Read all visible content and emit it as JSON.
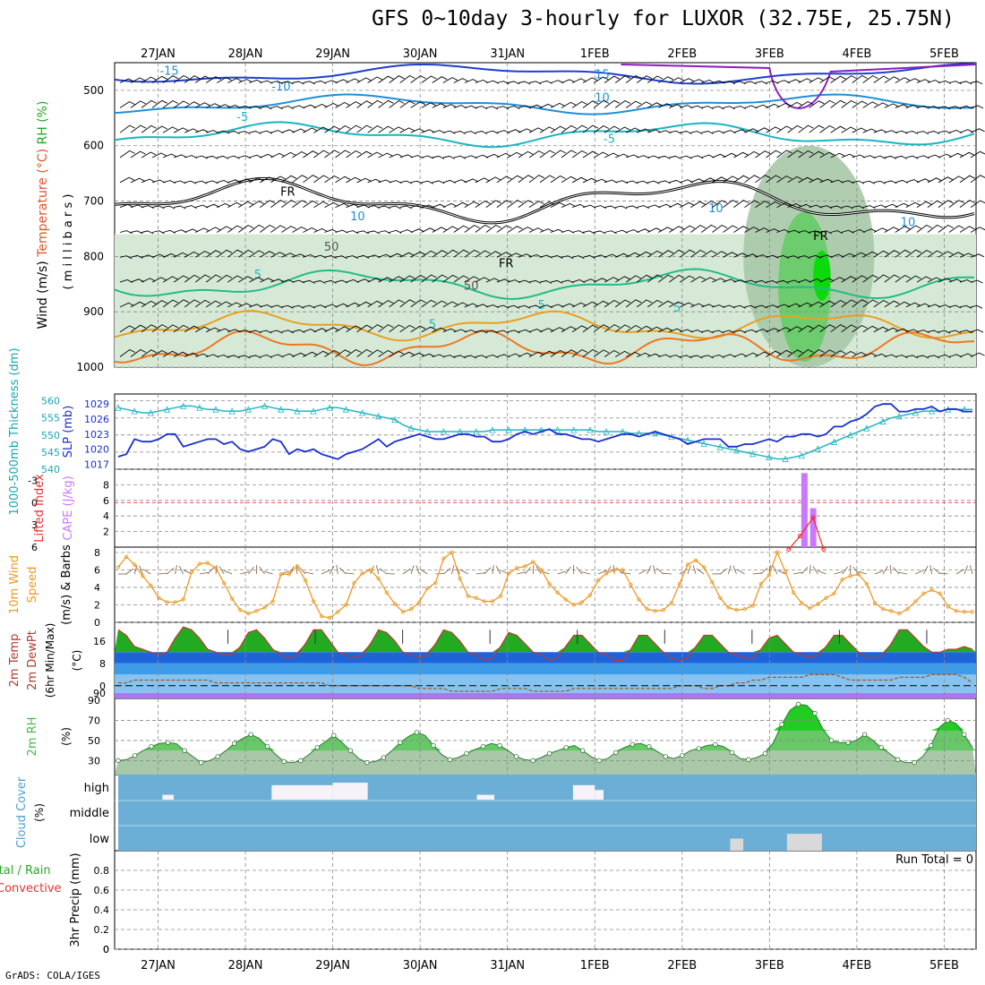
{
  "title": "GFS 0~10day 3-hourly for LUXOR (32.75E, 25.75N)",
  "credit": "GrADS: COLA/IGES",
  "colors": {
    "wind_barb": "#000000",
    "rh_light": "#d6e9d6",
    "rh_mid": "#a9c8a9",
    "rh_green": "#66cc66",
    "rh_bright": "#00dd00",
    "slp": "#1a2fcf",
    "thickness": "#22b6c2",
    "cape": "#cc77ff",
    "lifted": "#ff2222",
    "wind10m": "#ee9922",
    "temp_high": "#22aa22",
    "temp_blue1": "#1f63d9",
    "temp_blue2": "#3d9be8",
    "temp_blue3": "#86c3f0",
    "freezing": "#aa77ee",
    "dewpoint": "#a05a2c",
    "rh2m": "#44bb44",
    "cloud": "#6baed6"
  },
  "chart_data": [
    {
      "panel": "upper-air",
      "type": "heatmap",
      "ylabel_parts": [
        "RH (%)",
        "Temperature (°C)",
        "Wind (m/s)"
      ],
      "yunit": "( m i l l i b a r s )",
      "x_dates": [
        "27JAN",
        "28JAN",
        "29JAN",
        "30JAN",
        "31JAN",
        "1FEB",
        "2FEB",
        "3FEB",
        "4FEB",
        "5FEB"
      ],
      "yticks": [
        500,
        600,
        700,
        800,
        900,
        1000
      ],
      "ylim": [
        1000,
        450
      ],
      "contour_labels": [
        "-15",
        "-10",
        "-5",
        "15",
        "10",
        "-5",
        "5",
        "-5",
        "10",
        "5",
        "FR",
        "FR",
        "FR",
        "10",
        "10",
        "50",
        "50",
        "5"
      ],
      "rh_shading": [
        {
          "x": [
            0.0,
            0.5
          ],
          "p": [
            780,
            1000
          ],
          "level": 1
        },
        {
          "x": [
            0.6,
            1.4
          ],
          "p": [
            800,
            1000
          ],
          "level": 1
        },
        {
          "x": [
            2.5,
            3.6
          ],
          "p": [
            780,
            1000
          ],
          "level": 1
        },
        {
          "x": [
            4.1,
            5.2
          ],
          "p": [
            790,
            1000
          ],
          "level": 1
        },
        {
          "x": [
            6.7,
            8.2
          ],
          "p": [
            600,
            1000
          ],
          "level": 2
        },
        {
          "x": [
            7.1,
            7.7
          ],
          "p": [
            720,
            990
          ],
          "level": 3
        },
        {
          "x": [
            7.5,
            7.7
          ],
          "p": [
            790,
            880
          ],
          "level": 4
        }
      ]
    },
    {
      "panel": "slp-thickness",
      "type": "line",
      "ylabel_left": "1000-500mb Thickness (dm)",
      "ylabel_right": "SLP (mb)",
      "yticks_thickness": [
        540,
        545,
        550,
        555,
        560
      ],
      "yticks_slp": [
        1017,
        1020,
        1023,
        1026,
        1029
      ],
      "slp_values": [
        1018.5,
        1019,
        1022,
        1021.5,
        1021.5,
        1022,
        1023,
        1023,
        1020.5,
        1021,
        1021.5,
        1022,
        1022,
        1021,
        1021.5,
        1020,
        1019.5,
        1020,
        1020.5,
        1022,
        1021.5,
        1019,
        1020,
        1019.5,
        1020,
        1019,
        1018.5,
        1018,
        1019,
        1019.5,
        1020,
        1021,
        1022,
        1020.5,
        1021.5,
        1022,
        1022.5,
        1023,
        1022.5,
        1022,
        1022,
        1022.5,
        1023,
        1023,
        1022.5,
        1022.5,
        1021.5,
        1021.5,
        1022,
        1023,
        1023.5,
        1023,
        1023.5,
        1024,
        1023,
        1023,
        1022.5,
        1022,
        1022,
        1021.5,
        1022,
        1022.5,
        1023,
        1023,
        1022.5,
        1023,
        1023.5,
        1023,
        1022.5,
        1022,
        1021,
        1021.5,
        1022,
        1022,
        1022,
        1020.5,
        1020.5,
        1021,
        1021,
        1021.5,
        1022,
        1021.5,
        1022.5,
        1022.5,
        1023,
        1023,
        1022.5,
        1023,
        1024.5,
        1024.5,
        1025.5,
        1026,
        1027,
        1028.5,
        1029,
        1029,
        1027.5,
        1027.5,
        1028,
        1028,
        1028.5,
        1027.5,
        1028,
        1028,
        1027.5,
        1027.5
      ],
      "thickness_values": [
        558,
        557.5,
        557,
        556.5,
        556.5,
        557,
        557.5,
        558,
        558.5,
        558.5,
        558,
        557.5,
        557.5,
        557,
        557,
        557,
        557.5,
        558,
        558.5,
        558,
        557.5,
        557.5,
        557,
        557,
        557,
        557.5,
        558,
        558,
        557.5,
        557,
        556.5,
        556,
        555.5,
        555,
        554.5,
        553,
        552,
        551.5,
        551,
        551,
        551,
        551,
        551,
        551,
        551,
        551,
        551.5,
        551.5,
        551.5,
        551.5,
        551.5,
        551.5,
        551.5,
        551.5,
        551.5,
        551.5,
        551.5,
        551.5,
        551.5,
        551,
        551,
        551,
        551,
        550.5,
        550.5,
        550.5,
        550.5,
        550,
        549.5,
        549,
        548.5,
        548,
        547.5,
        547,
        546.5,
        546,
        545.5,
        545,
        544.5,
        544,
        543.5,
        543,
        543,
        543.5,
        544,
        545,
        546,
        547,
        548,
        549,
        550,
        551,
        552,
        553,
        554,
        555,
        555.5,
        556,
        556.5,
        557,
        557,
        557,
        557.5,
        557.5,
        557.5,
        557.5
      ]
    },
    {
      "panel": "cape-lifted",
      "type": "bar",
      "ylabel_left": "Lifted Index",
      "ylabel_right": "CAPE (J/kg)",
      "yticks_li": [
        -3,
        0,
        3,
        6
      ],
      "yticks_cape": [
        2,
        4,
        6,
        8
      ],
      "cape_bars": [
        {
          "day": 7.4,
          "value": 9.5
        },
        {
          "day": 7.5,
          "value": 5.0
        }
      ],
      "lifted_points": [
        {
          "day": 7.22,
          "value": 6.3
        },
        {
          "day": 7.35,
          "value": 4.5
        },
        {
          "day": 7.5,
          "value": 2.0
        },
        {
          "day": 7.62,
          "value": 6.3
        }
      ]
    },
    {
      "panel": "wind10m",
      "type": "line",
      "ylabel": "10m Wind Speed (m/s) & Barbs",
      "yticks": [
        0,
        2,
        4,
        6,
        8
      ],
      "values": [
        6.3,
        7.5,
        6.6,
        5.3,
        4.2,
        2.8,
        2.3,
        2.3,
        2.6,
        5.7,
        6.7,
        6.8,
        6.2,
        4.5,
        2.7,
        1.4,
        1.0,
        1.3,
        1.7,
        2.4,
        5.5,
        5.5,
        6.4,
        4.8,
        2.4,
        0.7,
        0.5,
        1.2,
        2.0,
        4.5,
        5.6,
        6.0,
        5.0,
        3.4,
        2.1,
        1.2,
        1.5,
        2.3,
        3.9,
        4.5,
        7.3,
        8.0,
        5.0,
        3.0,
        2.8,
        2.4,
        2.4,
        3.0,
        5.6,
        6.2,
        6.4,
        6.9,
        6.0,
        4.4,
        3.4,
        2.6,
        2.0,
        2.3,
        3.1,
        4.8,
        5.6,
        6.0,
        6.0,
        4.3,
        2.6,
        1.5,
        1.3,
        1.4,
        2.2,
        4.4,
        6.6,
        7.1,
        6.3,
        4.6,
        2.8,
        1.7,
        1.4,
        1.5,
        1.9,
        4.4,
        5.4,
        8.0,
        5.8,
        3.4,
        2.2,
        1.6,
        2.1,
        2.8,
        3.3,
        4.9,
        5.3,
        5.5,
        4.4,
        2.2,
        1.5,
        1.3,
        1.0,
        1.5,
        2.4,
        3.3,
        3.7,
        3.3,
        1.8,
        1.3,
        1.2,
        1.2
      ]
    },
    {
      "panel": "temp2m",
      "type": "area",
      "ylabel": "2m Temp 2m DewPt (6hr Min/Max) (°C)",
      "yticks": [
        0,
        8,
        16
      ],
      "temp_values": [
        20,
        18,
        14,
        13,
        12,
        11,
        12,
        17,
        21,
        20,
        17,
        13,
        12,
        11,
        11,
        14,
        19,
        20,
        17,
        13,
        11,
        10,
        11,
        15,
        20,
        20,
        16,
        12,
        11,
        10,
        11,
        15,
        20,
        19,
        16,
        12,
        11,
        10,
        11,
        15,
        20,
        19,
        16,
        12,
        11,
        9,
        10,
        14,
        19,
        18,
        15,
        12,
        11,
        9,
        10,
        14,
        18,
        18,
        15,
        12,
        11,
        9,
        9,
        13,
        18,
        18,
        15,
        12,
        10,
        9,
        10,
        14,
        18,
        18,
        15,
        12,
        11,
        10,
        10,
        13,
        17,
        18,
        15,
        12,
        11,
        10,
        11,
        14,
        18,
        18,
        15,
        12,
        10,
        10,
        11,
        15,
        20,
        20,
        17,
        14,
        12,
        12,
        13,
        13,
        14,
        13
      ],
      "dew_values": [
        1,
        1,
        2,
        2,
        2,
        2,
        2,
        2,
        2,
        2,
        2,
        2,
        1,
        1,
        1,
        1,
        1,
        1,
        1,
        1,
        1,
        1,
        1,
        1,
        1,
        1,
        0,
        0,
        0,
        0,
        0,
        0,
        0,
        0,
        0,
        0,
        0,
        -1,
        -1,
        -1,
        -1,
        -2,
        -2,
        -2,
        -2,
        -2,
        -2,
        -1,
        -1,
        -1,
        -1,
        -2,
        -2,
        -2,
        -2,
        -2,
        -1,
        -1,
        -1,
        -1,
        -1,
        -1,
        -1,
        -1,
        -1,
        -1,
        -1,
        -1,
        -1,
        0,
        0,
        0,
        -1,
        -1,
        0,
        0,
        1,
        1,
        2,
        2,
        3,
        3,
        3,
        3,
        3,
        4,
        4,
        4,
        4,
        3,
        2,
        2,
        2,
        2,
        2,
        2,
        3,
        3,
        3,
        3,
        4,
        4,
        4,
        4,
        3,
        1
      ],
      "temp_max_marks": [
        0.8,
        1.8,
        2.8,
        3.8,
        4.8,
        5.8,
        6.8,
        7.8,
        8.8
      ]
    },
    {
      "panel": "rh2m",
      "type": "area",
      "ylabel": "2m RH (%)",
      "yticks": [
        30,
        50,
        70,
        90
      ],
      "values": [
        30,
        31,
        35,
        40,
        44,
        47,
        48,
        47,
        40,
        34,
        28,
        30,
        34,
        40,
        47,
        52,
        56,
        52,
        44,
        36,
        29,
        28,
        30,
        36,
        43,
        49,
        55,
        48,
        40,
        32,
        28,
        29,
        33,
        40,
        48,
        54,
        58,
        55,
        45,
        36,
        31,
        33,
        37,
        41,
        44,
        47,
        45,
        40,
        34,
        31,
        30,
        33,
        37,
        40,
        43,
        45,
        40,
        34,
        30,
        32,
        38,
        43,
        46,
        47,
        44,
        39,
        34,
        32,
        35,
        40,
        42,
        45,
        46,
        44,
        38,
        32,
        31,
        33,
        37,
        48,
        66,
        80,
        86,
        85,
        77,
        61,
        50,
        48,
        48,
        50,
        56,
        50,
        43,
        37,
        31,
        28,
        28,
        34,
        45,
        63,
        70,
        67,
        56,
        43
      ]
    },
    {
      "panel": "cloud-cover",
      "type": "heatmap",
      "ylabel": "Cloud Cover (%)",
      "levels": [
        "high",
        "middle",
        "low"
      ],
      "white_patches": [
        {
          "level": "high",
          "x": [
            0.05,
            0.18
          ],
          "value": 20
        },
        {
          "level": "high",
          "x": [
            1.3,
            2.0
          ],
          "value": 60
        },
        {
          "level": "high",
          "x": [
            2.0,
            2.4
          ],
          "value": 70
        },
        {
          "level": "high",
          "x": [
            3.65,
            3.85
          ],
          "value": 20
        },
        {
          "level": "high",
          "x": [
            4.75,
            5.0
          ],
          "value": 60
        },
        {
          "level": "high",
          "x": [
            5.0,
            5.1
          ],
          "value": 40
        },
        {
          "level": "low",
          "x": [
            6.55,
            6.7
          ],
          "value": 50
        },
        {
          "level": "low",
          "x": [
            7.2,
            7.6
          ],
          "value": 70
        }
      ]
    },
    {
      "panel": "precip",
      "type": "bar",
      "ylabel_left": "Total / Rain",
      "ylabel_left2": "Convective",
      "ylabel_right": "3hr Precip (mm)",
      "yticks": [
        0,
        0.2,
        0.4,
        0.6,
        0.8
      ],
      "ylim": [
        0,
        1.0
      ],
      "run_total": "Run Total = 0",
      "values": []
    }
  ]
}
